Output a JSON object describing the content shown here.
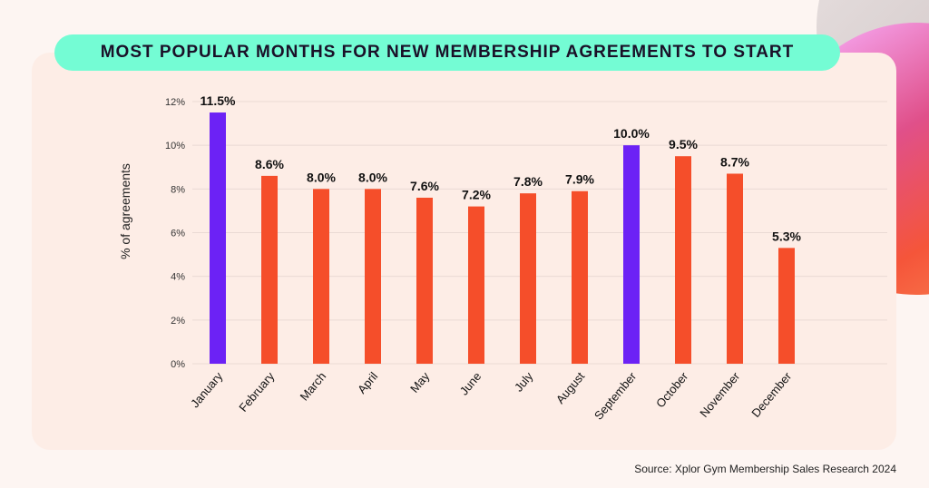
{
  "chart_data": {
    "type": "bar",
    "title": "MOST POPULAR MONTHS FOR NEW MEMBERSHIP AGREEMENTS TO START",
    "xlabel": "",
    "ylabel": "% of agreements",
    "ylim": [
      0,
      12
    ],
    "yticks": [
      "0%",
      "2%",
      "4%",
      "6%",
      "8%",
      "10%",
      "12%"
    ],
    "yticks_values": [
      0,
      2,
      4,
      6,
      8,
      10,
      12
    ],
    "grid": true,
    "categories": [
      "January",
      "February",
      "March",
      "April",
      "May",
      "June",
      "July",
      "August",
      "September",
      "October",
      "November",
      "December"
    ],
    "values": [
      11.5,
      8.6,
      8.0,
      8.0,
      7.6,
      7.2,
      7.8,
      7.9,
      10.0,
      9.5,
      8.7,
      5.3
    ],
    "labels": [
      "11.5%",
      "8.6%",
      "8.0%",
      "8.0%",
      "7.6%",
      "7.2%",
      "7.8%",
      "7.9%",
      "10.0%",
      "9.5%",
      "8.7%",
      "5.3%"
    ],
    "highlighted": [
      "January",
      "September"
    ],
    "colors": {
      "default": "#f54e2a",
      "highlight": "#6c22f5",
      "title_bg": "#74fcd4"
    }
  },
  "source": "Source: Xplor Gym Membership Sales Research 2024"
}
